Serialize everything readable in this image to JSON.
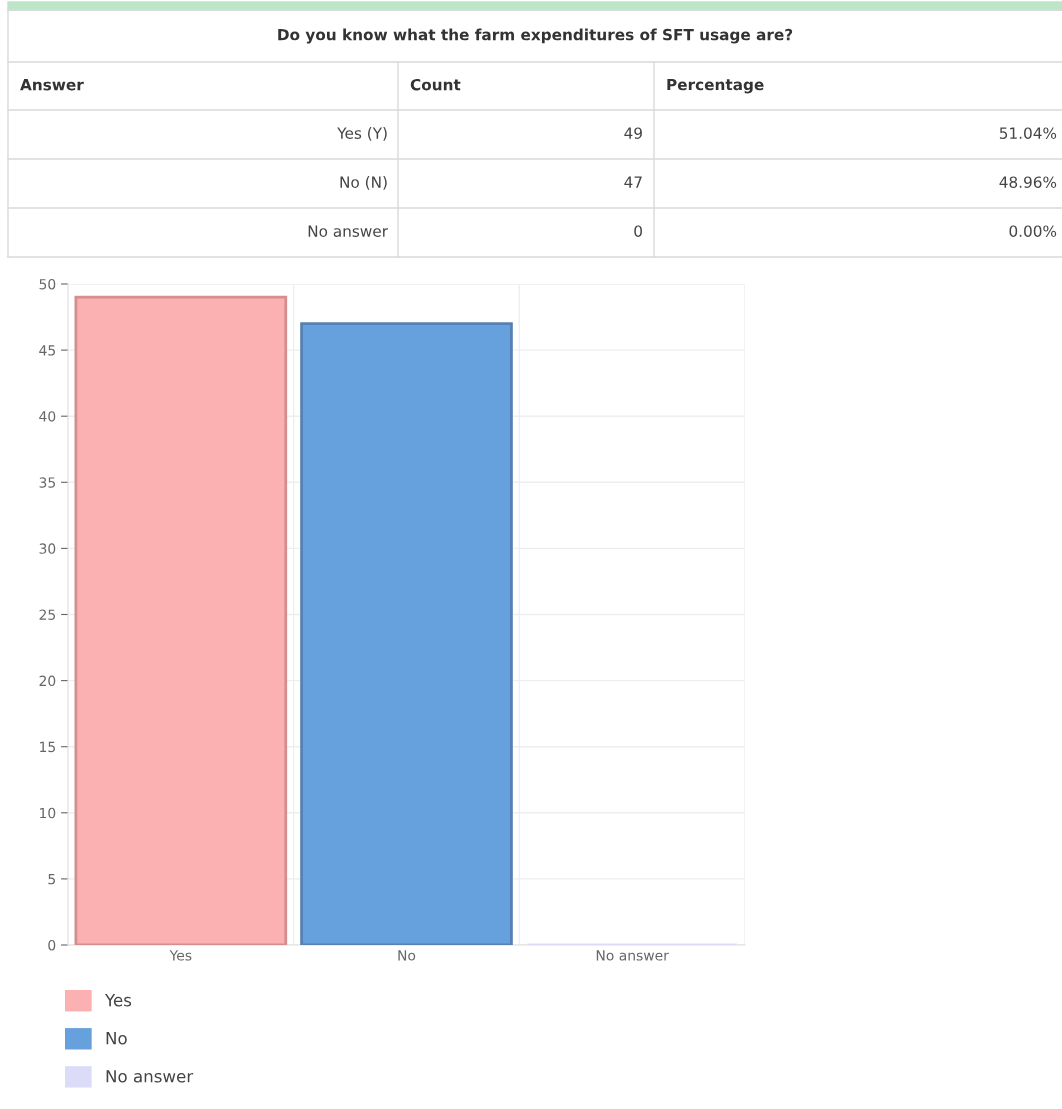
{
  "chart_data": {
    "type": "bar",
    "title": "Do you know what the farm expenditures of SFT usage are?",
    "categories": [
      "Yes",
      "No",
      "No answer"
    ],
    "series": [
      {
        "name": "Yes",
        "color": "#fbb1b1",
        "values": [
          49,
          null,
          null
        ]
      },
      {
        "name": "No",
        "color": "#66a1de",
        "values": [
          null,
          47,
          null
        ]
      },
      {
        "name": "No answer",
        "color": "#dcdcf8",
        "values": [
          null,
          null,
          0
        ]
      }
    ],
    "ylim": [
      0,
      50
    ],
    "yticks": [
      0,
      5,
      10,
      15,
      20,
      25,
      30,
      35,
      40,
      45,
      50
    ],
    "grid": true,
    "legend": "bottom",
    "annotations": [
      "Answer",
      "Count",
      "Percentage",
      "Yes (Y)",
      "No (N)",
      "No answer",
      "49",
      "47",
      "0",
      "51.04%",
      "48.96%",
      "0.00%"
    ]
  }
}
